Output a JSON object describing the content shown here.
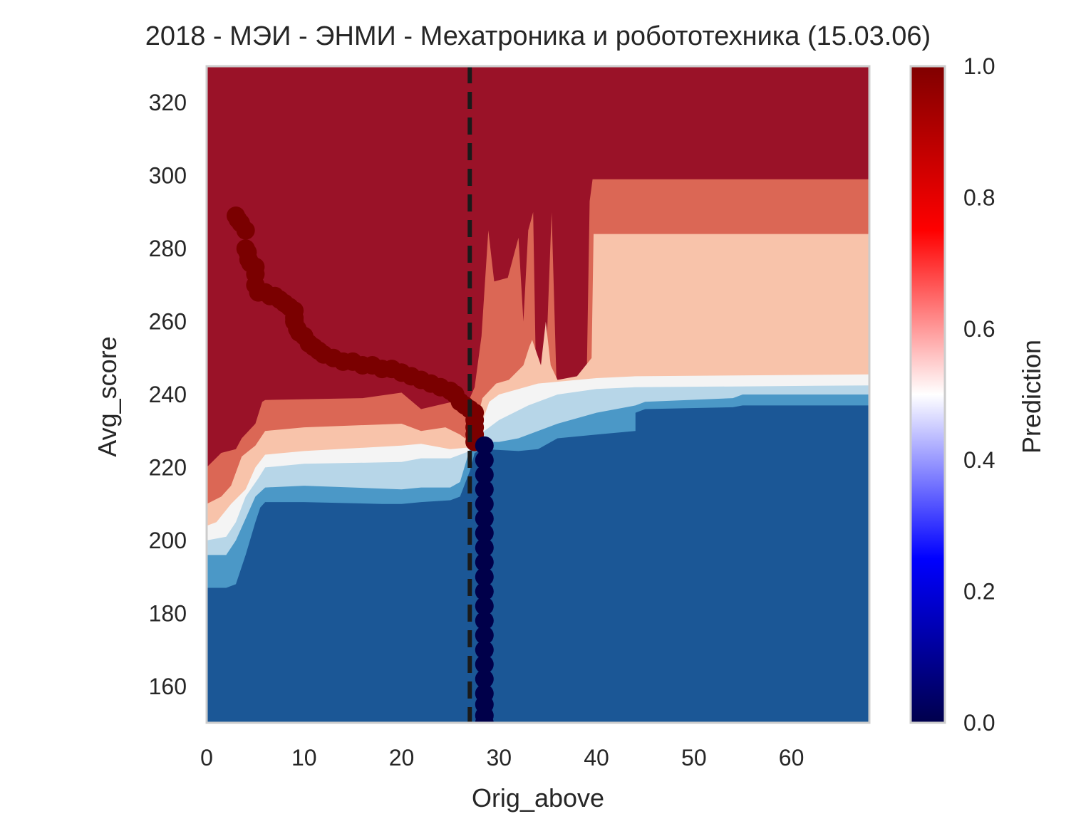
{
  "chart_data": {
    "type": "heatmap",
    "title": "2018 - МЭИ - ЭНМИ - Мехатроника и робототехника (15.03.06)",
    "xlabel": "Orig_above",
    "ylabel": "Avg_score",
    "xlim": [
      0,
      68
    ],
    "ylim": [
      150,
      330
    ],
    "xticks": [
      0,
      10,
      20,
      30,
      40,
      50,
      60
    ],
    "yticks": [
      160,
      180,
      200,
      220,
      240,
      260,
      280,
      300,
      320
    ],
    "grid": false,
    "threshold_line": {
      "x": 27,
      "style": "dashed",
      "color": "#1a1a1a"
    },
    "colorbar": {
      "label": "Prediction",
      "range": [
        0,
        1
      ],
      "ticks": [
        "0.0",
        "0.2",
        "0.4",
        "0.6",
        "0.8",
        "1.0"
      ],
      "colormap": "seismic"
    },
    "contour_levels": {
      "colors": [
        "#1b5796",
        "#4b98c7",
        "#b7d6e8",
        "#f4f4f4",
        "#f8c3aa",
        "#db6755",
        "#9a1228"
      ]
    },
    "regions": [
      {
        "level": 6,
        "polygon": [
          [
            0,
            150
          ],
          [
            68,
            150
          ],
          [
            68,
            330
          ],
          [
            0,
            330
          ]
        ]
      },
      {
        "level": 5,
        "polygon": [
          [
            0,
            150
          ],
          [
            68,
            150
          ],
          [
            68,
            299
          ],
          [
            39.6,
            299
          ],
          [
            39.3,
            293
          ],
          [
            39,
            245
          ],
          [
            36,
            244
          ],
          [
            35.9,
            243
          ],
          [
            35.4,
            290
          ],
          [
            34.8,
            247
          ],
          [
            33.8,
            243.5
          ],
          [
            33.5,
            290
          ],
          [
            33,
            285
          ],
          [
            32.5,
            260
          ],
          [
            32,
            283
          ],
          [
            30.9,
            272
          ],
          [
            29.5,
            271
          ],
          [
            28.9,
            285
          ],
          [
            28.2,
            256
          ],
          [
            27.5,
            242
          ],
          [
            27,
            239
          ],
          [
            26,
            238.5
          ],
          [
            22,
            236
          ],
          [
            20,
            240.5
          ],
          [
            16,
            239
          ],
          [
            6,
            238.5
          ],
          [
            5.7,
            238
          ],
          [
            5,
            232
          ],
          [
            3.6,
            228
          ],
          [
            3,
            225
          ],
          [
            1.5,
            224
          ],
          [
            0,
            220
          ]
        ]
      },
      {
        "level": 4,
        "polygon": [
          [
            0,
            150
          ],
          [
            68,
            150
          ],
          [
            68,
            284
          ],
          [
            39.7,
            284
          ],
          [
            39.5,
            250
          ],
          [
            38,
            245
          ],
          [
            36,
            244
          ],
          [
            35.3,
            248
          ],
          [
            34.8,
            260
          ],
          [
            34.3,
            248
          ],
          [
            33.4,
            255
          ],
          [
            33.1,
            253
          ],
          [
            32.5,
            248
          ],
          [
            31,
            244
          ],
          [
            29.7,
            243
          ],
          [
            29,
            241
          ],
          [
            28.3,
            239
          ],
          [
            27.4,
            229
          ],
          [
            27,
            227
          ],
          [
            26,
            229
          ],
          [
            24.5,
            231
          ],
          [
            22,
            230
          ],
          [
            20,
            232
          ],
          [
            10,
            231
          ],
          [
            6,
            230
          ],
          [
            5,
            226
          ],
          [
            3.6,
            223
          ],
          [
            2.5,
            215
          ],
          [
            1.5,
            212
          ],
          [
            0,
            210
          ]
        ]
      },
      {
        "level": 3,
        "polygon": [
          [
            0,
            150
          ],
          [
            68,
            150
          ],
          [
            68,
            245.5
          ],
          [
            44,
            245
          ],
          [
            40,
            244.5
          ],
          [
            38,
            244
          ],
          [
            34,
            243
          ],
          [
            30,
            240
          ],
          [
            29,
            238
          ],
          [
            28.2,
            232
          ],
          [
            27,
            225.5
          ],
          [
            25,
            225
          ],
          [
            22,
            226.5
          ],
          [
            20,
            226
          ],
          [
            10,
            224.5
          ],
          [
            6,
            223.5
          ],
          [
            5,
            220
          ],
          [
            4,
            214
          ],
          [
            2.5,
            210
          ],
          [
            1,
            205
          ],
          [
            0,
            204
          ]
        ]
      },
      {
        "level": 2,
        "polygon": [
          [
            0,
            150
          ],
          [
            68,
            150
          ],
          [
            68,
            242.5
          ],
          [
            44,
            242
          ],
          [
            40,
            241.5
          ],
          [
            36,
            240
          ],
          [
            33,
            237
          ],
          [
            30,
            233
          ],
          [
            29,
            231
          ],
          [
            28,
            229
          ],
          [
            27,
            224.5
          ],
          [
            25,
            222.5
          ],
          [
            22,
            222.5
          ],
          [
            20,
            221.5
          ],
          [
            10,
            221
          ],
          [
            6,
            220
          ],
          [
            5.3,
            217
          ],
          [
            4,
            212
          ],
          [
            3,
            205
          ],
          [
            2,
            201
          ],
          [
            0,
            200
          ]
        ]
      },
      {
        "level": 1,
        "polygon": [
          [
            0,
            150
          ],
          [
            68,
            150
          ],
          [
            68,
            240
          ],
          [
            55,
            240
          ],
          [
            54,
            239
          ],
          [
            45,
            238
          ],
          [
            44,
            237
          ],
          [
            40,
            235
          ],
          [
            36,
            232
          ],
          [
            34,
            230
          ],
          [
            32,
            228
          ],
          [
            30,
            227
          ],
          [
            28,
            227
          ],
          [
            27,
            225
          ],
          [
            26,
            216
          ],
          [
            25,
            214.5
          ],
          [
            22,
            214.5
          ],
          [
            20,
            214
          ],
          [
            10,
            215
          ],
          [
            6,
            214.5
          ],
          [
            5,
            212
          ],
          [
            4,
            206
          ],
          [
            3,
            200
          ],
          [
            2,
            196
          ],
          [
            0,
            196
          ]
        ]
      },
      {
        "level": 0,
        "polygon": [
          [
            0,
            150
          ],
          [
            68,
            150
          ],
          [
            68,
            237
          ],
          [
            55,
            237
          ],
          [
            54,
            236.5
          ],
          [
            45,
            236
          ],
          [
            44,
            235
          ],
          [
            44,
            230
          ],
          [
            40,
            229
          ],
          [
            36,
            228
          ],
          [
            34,
            225
          ],
          [
            32,
            224.5
          ],
          [
            28.5,
            225
          ],
          [
            27.5,
            224
          ],
          [
            27,
            219
          ],
          [
            26,
            212
          ],
          [
            25,
            211
          ],
          [
            22,
            210.5
          ],
          [
            20,
            210
          ],
          [
            18,
            210
          ],
          [
            10,
            210.5
          ],
          [
            6,
            210.5
          ],
          [
            5.5,
            209
          ],
          [
            5,
            205
          ],
          [
            4,
            196
          ],
          [
            3,
            188
          ],
          [
            2,
            187
          ],
          [
            0,
            187
          ]
        ]
      }
    ],
    "series": [
      {
        "color": "#7a0000",
        "points": [
          [
            3.0,
            289
          ],
          [
            3.2,
            288
          ],
          [
            3.5,
            287
          ],
          [
            4.0,
            285
          ],
          [
            4.0,
            280
          ],
          [
            4.2,
            279
          ],
          [
            4.3,
            277
          ],
          [
            4.5,
            276
          ],
          [
            5.0,
            275
          ],
          [
            5.0,
            273
          ],
          [
            5.0,
            270
          ],
          [
            5.3,
            268
          ],
          [
            6.0,
            268
          ],
          [
            6.5,
            267
          ],
          [
            7.0,
            267
          ],
          [
            7.5,
            266
          ],
          [
            8.0,
            265
          ],
          [
            8.5,
            264
          ],
          [
            9.0,
            263
          ],
          [
            9.0,
            261
          ],
          [
            9.0,
            260
          ],
          [
            9.3,
            258
          ],
          [
            9.5,
            257
          ],
          [
            10.0,
            256
          ],
          [
            10.5,
            254
          ],
          [
            11.0,
            253
          ],
          [
            11.5,
            252
          ],
          [
            12.0,
            251
          ],
          [
            13.0,
            250
          ],
          [
            14.0,
            249
          ],
          [
            15.0,
            249
          ],
          [
            16.0,
            248
          ],
          [
            17.0,
            248
          ],
          [
            18.0,
            247
          ],
          [
            19.0,
            247
          ],
          [
            20.0,
            246
          ],
          [
            21.0,
            245
          ],
          [
            22.0,
            244
          ],
          [
            23.0,
            243
          ],
          [
            24.0,
            242
          ],
          [
            25.0,
            241
          ],
          [
            25.5,
            240
          ],
          [
            26.0,
            238
          ],
          [
            26.5,
            237
          ],
          [
            27.0,
            236
          ],
          [
            27.5,
            235
          ],
          [
            27.5,
            233
          ],
          [
            27.5,
            231
          ],
          [
            27.5,
            229
          ],
          [
            27.5,
            227
          ]
        ]
      },
      {
        "color": "#00004a",
        "points": [
          [
            28.5,
            226
          ],
          [
            28.5,
            222
          ],
          [
            28.5,
            218
          ],
          [
            28.5,
            214
          ],
          [
            28.5,
            210
          ],
          [
            28.5,
            206
          ],
          [
            28.5,
            202
          ],
          [
            28.5,
            198
          ],
          [
            28.5,
            194
          ],
          [
            28.5,
            190
          ],
          [
            28.5,
            186
          ],
          [
            28.5,
            182
          ],
          [
            28.5,
            178
          ],
          [
            28.5,
            174
          ],
          [
            28.5,
            170
          ],
          [
            28.5,
            166
          ],
          [
            28.5,
            162
          ],
          [
            28.5,
            158
          ],
          [
            28.5,
            155
          ],
          [
            28.5,
            152
          ],
          [
            28.5,
            150
          ]
        ]
      }
    ]
  }
}
